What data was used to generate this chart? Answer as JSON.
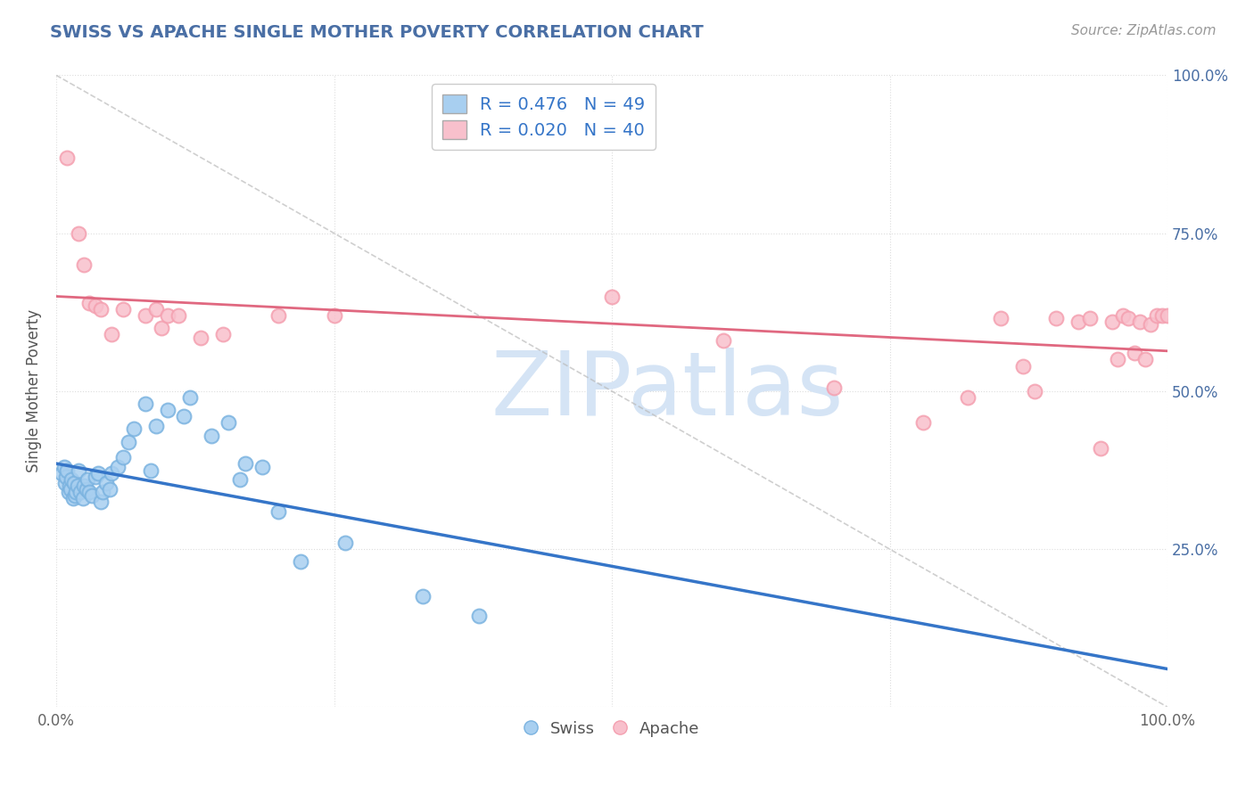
{
  "title": "SWISS VS APACHE SINGLE MOTHER POVERTY CORRELATION CHART",
  "source": "Source: ZipAtlas.com",
  "ylabel": "Single Mother Poverty",
  "xlim": [
    0,
    1
  ],
  "ylim": [
    0,
    1
  ],
  "swiss_R": 0.476,
  "swiss_N": 49,
  "apache_R": 0.02,
  "apache_N": 40,
  "swiss_color": "#7BB3E0",
  "swiss_fill": "#A8CFF0",
  "apache_color": "#F4A0B0",
  "apache_fill": "#F8C0CC",
  "title_color": "#4A6FA5",
  "legend_R_color": "#3575C8",
  "swiss_x": [
    0.005,
    0.007,
    0.008,
    0.009,
    0.01,
    0.011,
    0.012,
    0.013,
    0.014,
    0.015,
    0.016,
    0.017,
    0.018,
    0.019,
    0.02,
    0.022,
    0.024,
    0.025,
    0.027,
    0.028,
    0.03,
    0.032,
    0.035,
    0.038,
    0.04,
    0.042,
    0.045,
    0.048,
    0.05,
    0.055,
    0.06,
    0.065,
    0.07,
    0.08,
    0.085,
    0.09,
    0.1,
    0.115,
    0.12,
    0.14,
    0.155,
    0.165,
    0.17,
    0.185,
    0.2,
    0.22,
    0.26,
    0.33,
    0.38
  ],
  "swiss_y": [
    0.37,
    0.38,
    0.355,
    0.365,
    0.375,
    0.34,
    0.35,
    0.345,
    0.36,
    0.33,
    0.355,
    0.335,
    0.34,
    0.35,
    0.375,
    0.34,
    0.33,
    0.35,
    0.345,
    0.36,
    0.34,
    0.335,
    0.365,
    0.37,
    0.325,
    0.34,
    0.355,
    0.345,
    0.37,
    0.38,
    0.395,
    0.42,
    0.44,
    0.48,
    0.375,
    0.445,
    0.47,
    0.46,
    0.49,
    0.43,
    0.45,
    0.36,
    0.385,
    0.38,
    0.31,
    0.23,
    0.26,
    0.175,
    0.145
  ],
  "apache_x": [
    0.01,
    0.02,
    0.025,
    0.03,
    0.035,
    0.04,
    0.05,
    0.06,
    0.08,
    0.09,
    0.095,
    0.1,
    0.11,
    0.13,
    0.15,
    0.2,
    0.25,
    0.5,
    0.6,
    0.7,
    0.78,
    0.82,
    0.85,
    0.87,
    0.88,
    0.9,
    0.92,
    0.93,
    0.94,
    0.95,
    0.955,
    0.96,
    0.965,
    0.97,
    0.975,
    0.98,
    0.985,
    0.99,
    0.995,
    1.0
  ],
  "apache_y": [
    0.87,
    0.75,
    0.7,
    0.64,
    0.635,
    0.63,
    0.59,
    0.63,
    0.62,
    0.63,
    0.6,
    0.62,
    0.62,
    0.585,
    0.59,
    0.62,
    0.62,
    0.65,
    0.58,
    0.505,
    0.45,
    0.49,
    0.615,
    0.54,
    0.5,
    0.615,
    0.61,
    0.615,
    0.41,
    0.61,
    0.55,
    0.62,
    0.615,
    0.56,
    0.61,
    0.55,
    0.605,
    0.62,
    0.62,
    0.62
  ],
  "background_color": "#FFFFFF",
  "grid_color": "#DDDDDD",
  "watermark_color": "#D5E4F5"
}
